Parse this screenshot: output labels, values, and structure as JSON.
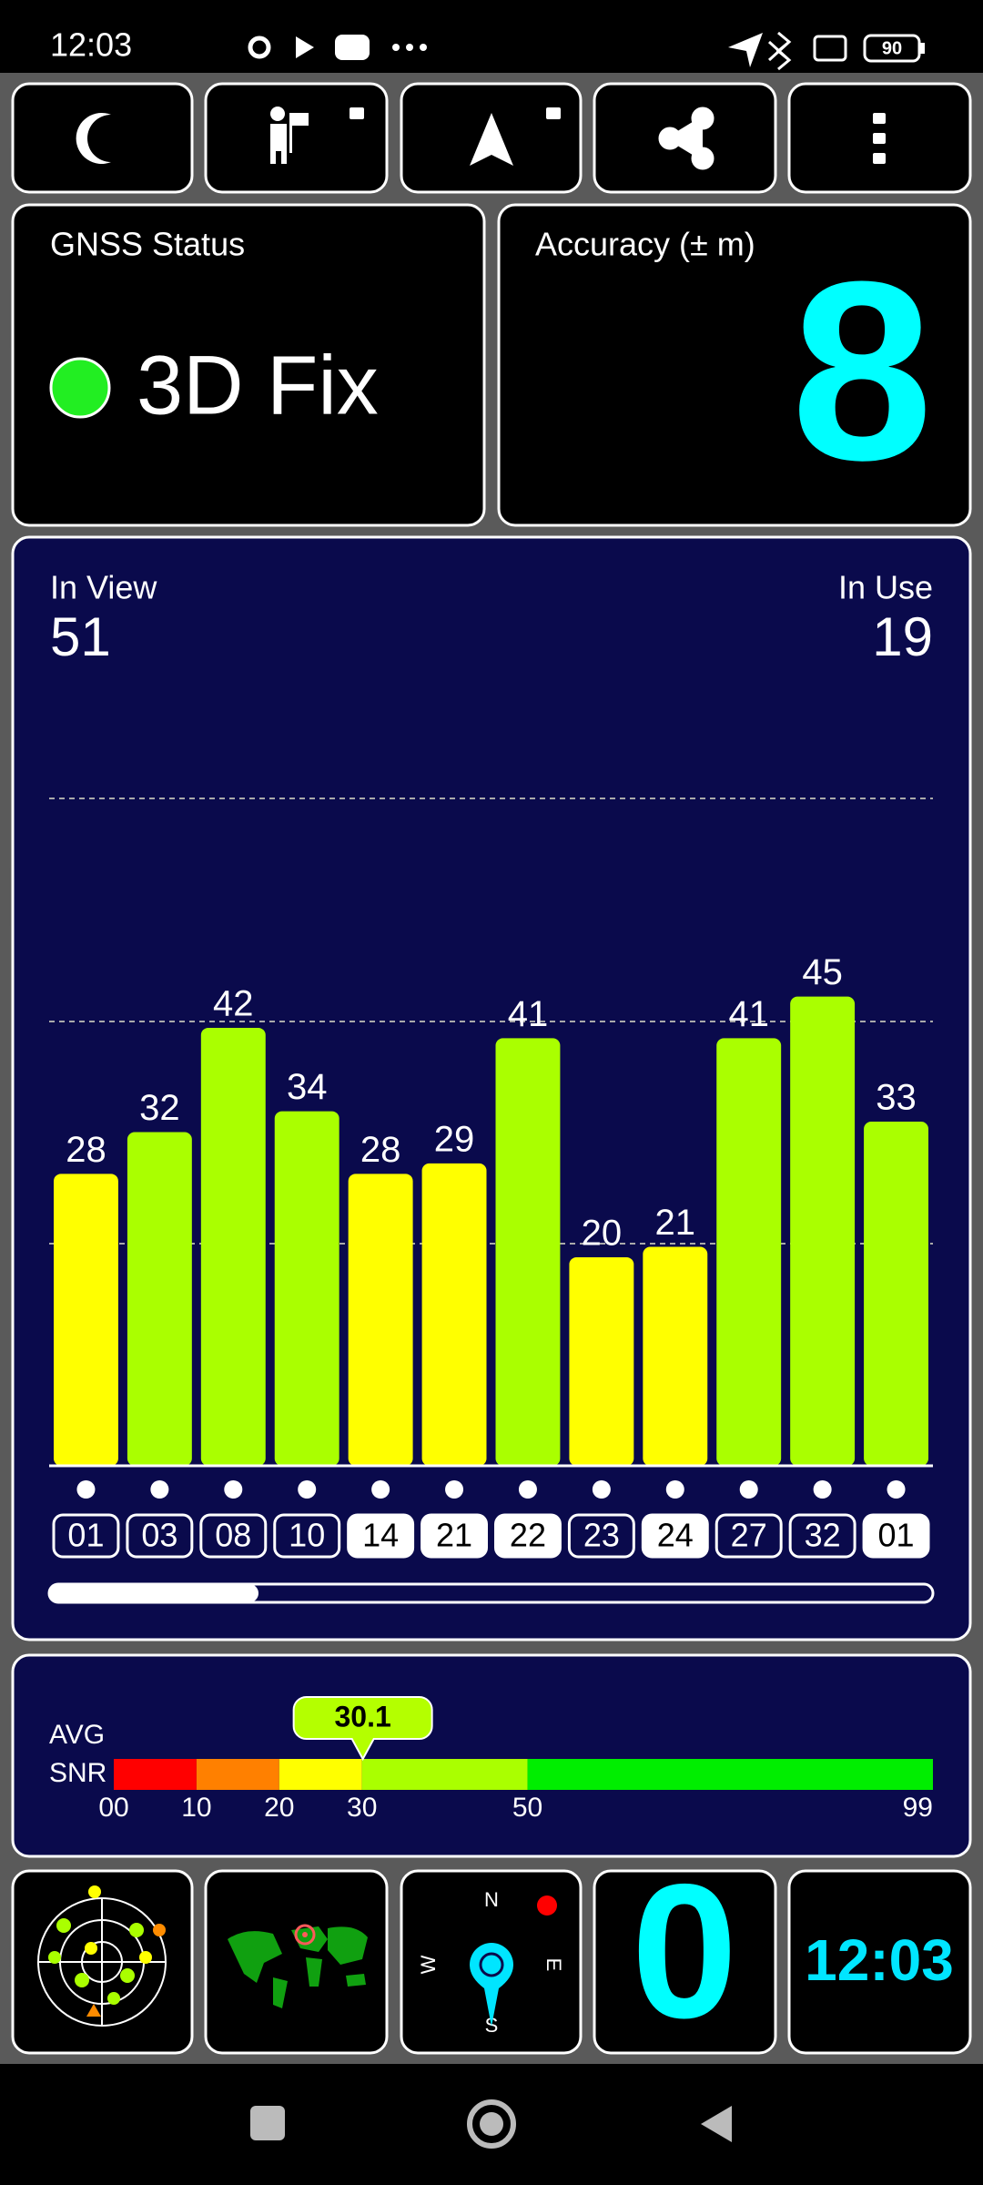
{
  "status_bar": {
    "time": "12:03",
    "battery": "90"
  },
  "gnss_status": {
    "label": "GNSS Status",
    "fix": "3D Fix"
  },
  "accuracy": {
    "label": "Accuracy (± m)",
    "value": "8"
  },
  "satellites": {
    "in_view_label": "In View",
    "in_view": 51,
    "in_use_label": "In Use",
    "in_use": 19
  },
  "chart_data": {
    "type": "bar",
    "categories": [
      "01",
      "03",
      "08",
      "10",
      "14",
      "21",
      "22",
      "23",
      "24",
      "27",
      "32",
      "01"
    ],
    "values": [
      28,
      32,
      42,
      34,
      28,
      29,
      41,
      20,
      21,
      41,
      45,
      33
    ],
    "ylim": [
      0,
      64
    ],
    "in_use": [
      false,
      false,
      false,
      false,
      true,
      true,
      true,
      false,
      true,
      false,
      false,
      true
    ]
  },
  "avg_snr": {
    "label_1": "AVG",
    "label_2": "SNR",
    "value": 30.1,
    "xlim": [
      0,
      99
    ],
    "xticks": [
      {
        "value": 0,
        "label": "00"
      },
      10,
      20,
      30,
      50,
      99
    ],
    "colors": [
      "#ff0000",
      "#ff8000",
      "#ffff00",
      "#aaff00",
      "#00ee00"
    ]
  },
  "compass": {
    "north": "N",
    "east": "E",
    "south": "S",
    "west": "W"
  },
  "speed": "0",
  "clock": "12:03"
}
